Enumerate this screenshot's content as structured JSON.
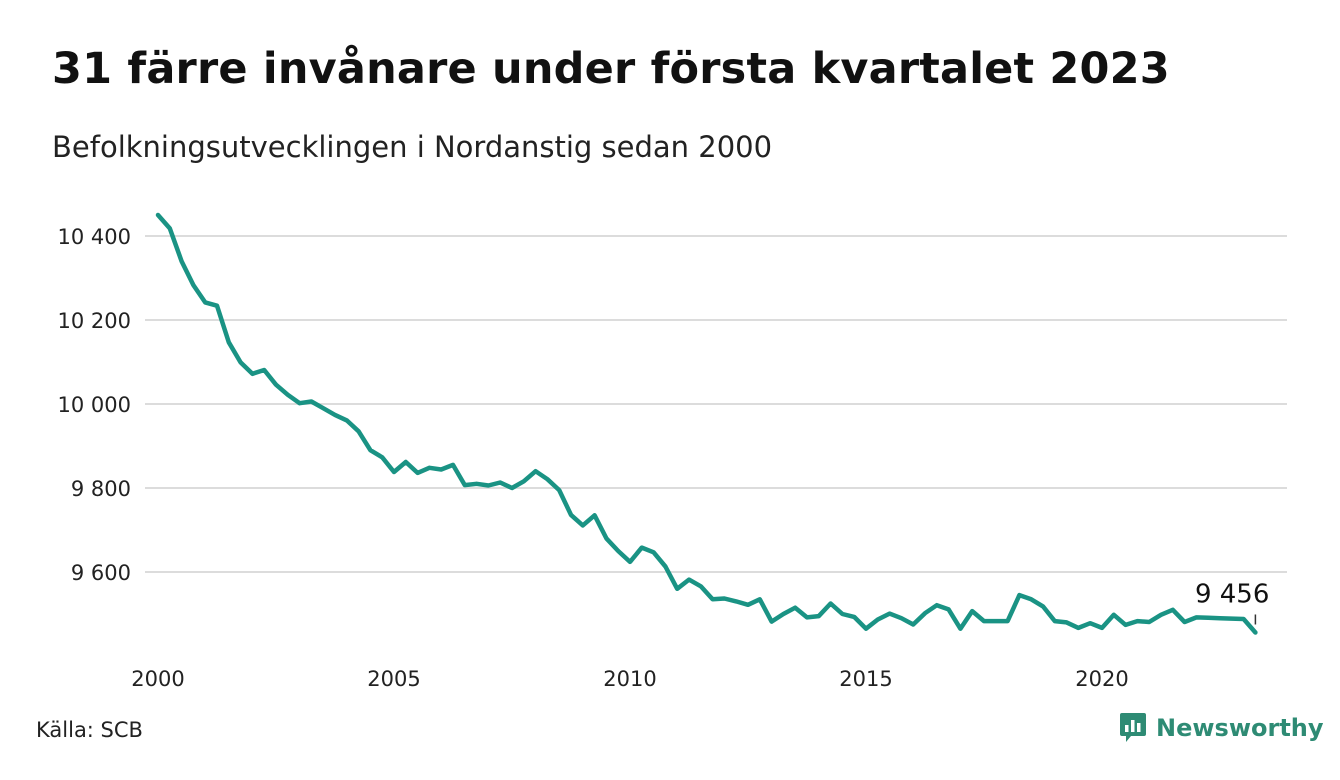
{
  "title": "31 färre invånare under första kvartalet 2023",
  "subtitle": "Befolkningsutvecklingen i Nordanstig sedan 2000",
  "source": "Källa: SCB",
  "brand": {
    "name": "Newsworthy",
    "icon": "newsworthy-logo-icon",
    "color": "#2e8b74"
  },
  "colors": {
    "line": "#1a9384",
    "grid": "#dcdcdc",
    "text": "#222222"
  },
  "chart_data": {
    "type": "line",
    "title": "31 färre invånare under första kvartalet 2023",
    "subtitle": "Befolkningsutvecklingen i Nordanstig sedan 2000",
    "xlabel": "",
    "ylabel": "",
    "xlim": [
      2000,
      2023.25
    ],
    "ylim": [
      9440,
      10460
    ],
    "xticks": [
      2000,
      2005,
      2010,
      2015,
      2020
    ],
    "xtick_labels": [
      "2000",
      "2005",
      "2010",
      "2015",
      "2020"
    ],
    "yticks": [
      9600,
      9800,
      10000,
      10200,
      10400
    ],
    "ytick_labels": [
      "9 600",
      "9 800",
      "10 000",
      "10 200",
      "10 400"
    ],
    "grid": true,
    "legend": "none",
    "end_label": "9 456",
    "series": [
      {
        "x": [
          2000.0,
          2000.25,
          2000.5,
          2000.75,
          2001.0,
          2001.25,
          2001.5,
          2001.75,
          2002.0,
          2002.25,
          2002.5,
          2002.75,
          2003.0,
          2003.25,
          2003.5,
          2003.75,
          2004.0,
          2004.25,
          2004.5,
          2004.75,
          2005.0,
          2005.25,
          2005.5,
          2005.75,
          2006.0,
          2006.25,
          2006.5,
          2006.75,
          2007.0,
          2007.25,
          2007.5,
          2007.75,
          2008.0,
          2008.25,
          2008.5,
          2008.75,
          2009.0,
          2009.25,
          2009.5,
          2009.75,
          2010.0,
          2010.25,
          2010.5,
          2010.75,
          2011.0,
          2011.25,
          2011.5,
          2011.75,
          2012.0,
          2012.25,
          2012.5,
          2012.75,
          2013.0,
          2013.25,
          2013.5,
          2013.75,
          2014.0,
          2014.25,
          2014.5,
          2014.75,
          2015.0,
          2015.25,
          2015.5,
          2015.75,
          2016.0,
          2016.25,
          2016.5,
          2016.75,
          2017.0,
          2017.25,
          2017.5,
          2017.75,
          2018.0,
          2018.25,
          2018.5,
          2018.75,
          2019.0,
          2019.25,
          2019.5,
          2019.75,
          2020.0,
          2020.25,
          2020.5,
          2020.75,
          2021.0,
          2021.25,
          2021.5,
          2021.75,
          2022.0,
          2022.25,
          2022.5,
          2022.75,
          2023.0,
          2023.25
        ],
        "values": [
          10450,
          10418,
          10340,
          10283,
          10242,
          10234,
          10147,
          10099,
          10072,
          10081,
          10046,
          10022,
          10002,
          10006,
          9990,
          9974,
          9961,
          9935,
          9890,
          9873,
          9838,
          9862,
          9836,
          9848,
          9844,
          9855,
          9807,
          9810,
          9806,
          9813,
          9800,
          9816,
          9840,
          9821,
          9795,
          9736,
          9711,
          9735,
          9680,
          9650,
          9624,
          9658,
          9647,
          9613,
          9560,
          9582,
          9566,
          9535,
          9537,
          9530,
          9522,
          9535,
          9482,
          9500,
          9515,
          9492,
          9495,
          9525,
          9500,
          9493,
          9465,
          9487,
          9501,
          9490,
          9475,
          9502,
          9521,
          9511,
          9465,
          9507,
          9483,
          9483,
          9483,
          9545,
          9535,
          9518,
          9483,
          9480,
          9467,
          9478,
          9467,
          9498,
          9474,
          9483,
          9481,
          9498,
          9510,
          9481,
          9492,
          9491,
          9490,
          9489,
          9488,
          9456
        ]
      }
    ]
  }
}
